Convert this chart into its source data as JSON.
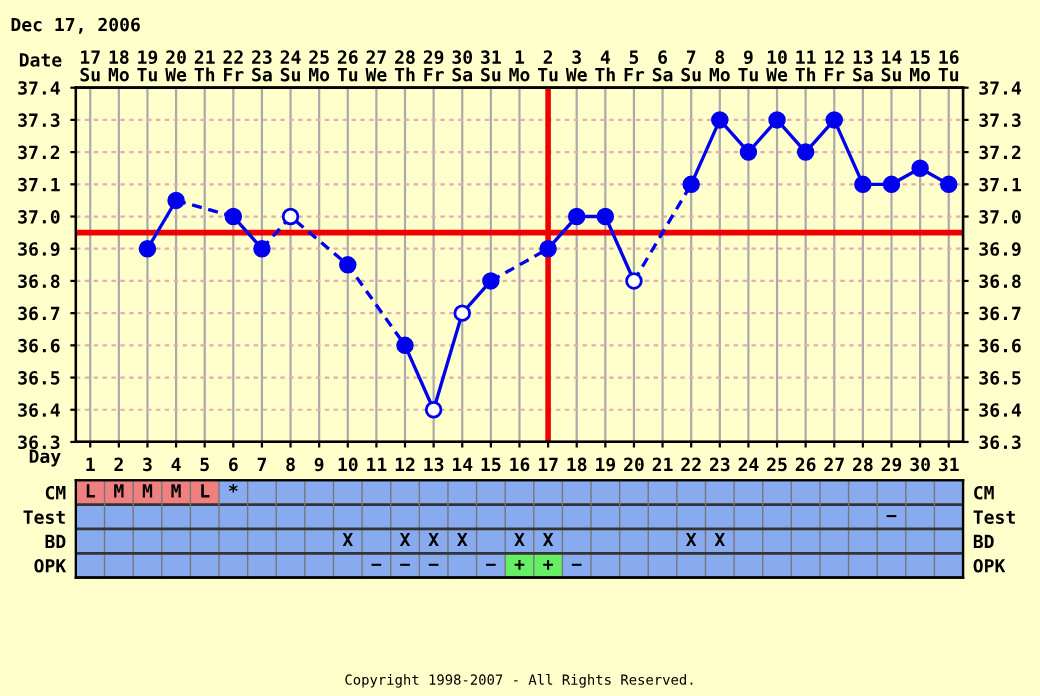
{
  "chart_data": [
    {
      "type": "line",
      "xlabel": "Day",
      "x2label": "Date",
      "annotations": [
        "Dec 17, 2006",
        "Copyright 1998-2007 - All Rights Reserved."
      ],
      "categories": [
        "1",
        "2",
        "3",
        "4",
        "5",
        "6",
        "7",
        "8",
        "9",
        "10",
        "11",
        "12",
        "13",
        "14",
        "15",
        "16",
        "17",
        "18",
        "19",
        "20",
        "21",
        "22",
        "23",
        "24",
        "25",
        "26",
        "27",
        "28",
        "29",
        "30",
        "31"
      ],
      "x2lim": [
        "2006-12-16T12:00",
        "2007-01-16T12:00"
      ],
      "x2ticks": [
        {
          "value": "2006-12-17",
          "label": "17\nSu"
        },
        {
          "value": "2006-12-18",
          "label": "18\nMo"
        },
        {
          "value": "2006-12-19",
          "label": "19\nTu"
        },
        {
          "value": "2006-12-20",
          "label": "20\nWe"
        },
        {
          "value": "2006-12-21",
          "label": "21\nTh"
        },
        {
          "value": "2006-12-22",
          "label": "22\nFr"
        },
        {
          "value": "2006-12-23",
          "label": "23\nSa"
        },
        {
          "value": "2006-12-24",
          "label": "24\nSu"
        },
        {
          "value": "2006-12-25",
          "label": "25\nMo"
        },
        {
          "value": "2006-12-26",
          "label": "26\nTu"
        },
        {
          "value": "2006-12-27",
          "label": "27\nWe"
        },
        {
          "value": "2006-12-28",
          "label": "28\nTh"
        },
        {
          "value": "2006-12-29",
          "label": "29\nFr"
        },
        {
          "value": "2006-12-30",
          "label": "30\nSa"
        },
        {
          "value": "2006-12-31",
          "label": "31\nSu"
        },
        {
          "value": "2007-01-01",
          "label": "1\nMo"
        },
        {
          "value": "2007-01-02",
          "label": "2\nTu"
        },
        {
          "value": "2007-01-03",
          "label": "3\nWe"
        },
        {
          "value": "2007-01-04",
          "label": "4\nTh"
        },
        {
          "value": "2007-01-05",
          "label": "5\nFr"
        },
        {
          "value": "2007-01-06",
          "label": "6\nSa"
        },
        {
          "value": "2007-01-07",
          "label": "7\nSu"
        },
        {
          "value": "2007-01-08",
          "label": "8\nMo"
        },
        {
          "value": "2007-01-09",
          "label": "9\nTu"
        },
        {
          "value": "2007-01-10",
          "label": "10\nWe"
        },
        {
          "value": "2007-01-11",
          "label": "11\nTh"
        },
        {
          "value": "2007-01-12",
          "label": "12\nFr"
        },
        {
          "value": "2007-01-13",
          "label": "13\nSa"
        },
        {
          "value": "2007-01-14",
          "label": "14\nSu"
        },
        {
          "value": "2007-01-15",
          "label": "15\nMo"
        },
        {
          "value": "2007-01-16",
          "label": "16\nTu"
        }
      ],
      "ylim": [
        36.3,
        37.4
      ],
      "yticks": [
        {
          "value": 36.3,
          "label": "36.3"
        },
        {
          "value": 36.4,
          "label": "36.4"
        },
        {
          "value": 36.5,
          "label": "36.5"
        },
        {
          "value": 36.6,
          "label": "36.6"
        },
        {
          "value": 36.7,
          "label": "36.7"
        },
        {
          "value": 36.8,
          "label": "36.8"
        },
        {
          "value": 36.9,
          "label": "36.9"
        },
        {
          "value": 37.0,
          "label": "37.0"
        },
        {
          "value": 37.1,
          "label": "37.1"
        },
        {
          "value": 37.2,
          "label": "37.2"
        },
        {
          "value": 37.3,
          "label": "37.3"
        },
        {
          "value": 37.4,
          "label": "37.4"
        }
      ],
      "y2lim": [
        36.3,
        37.4
      ],
      "y2ticks": [
        {
          "value": 36.3,
          "label": "36.3"
        },
        {
          "value": 36.4,
          "label": "36.4"
        },
        {
          "value": 36.5,
          "label": "36.5"
        },
        {
          "value": 36.6,
          "label": "36.6"
        },
        {
          "value": 36.7,
          "label": "36.7"
        },
        {
          "value": 36.8,
          "label": "36.8"
        },
        {
          "value": 36.9,
          "label": "36.9"
        },
        {
          "value": 37.0,
          "label": "37.0"
        },
        {
          "value": 37.1,
          "label": "37.1"
        },
        {
          "value": 37.2,
          "label": "37.2"
        },
        {
          "value": 37.3,
          "label": "37.3"
        },
        {
          "value": 37.4,
          "label": "37.4"
        }
      ],
      "grid": true,
      "legend": false,
      "ref_lines": [
        {
          "axis": "y",
          "value": 36.95,
          "color": "#ee0000"
        },
        {
          "axis": "x",
          "value": "17",
          "color": "#ee0000"
        }
      ],
      "series": [
        {
          "type": "line",
          "line_style": "dashed",
          "marker": "none",
          "color": "#0000ee",
          "x": [
            "4",
            "6"
          ],
          "values": [
            37.05,
            37.0
          ]
        },
        {
          "type": "line",
          "line_style": "dashed",
          "marker": "none",
          "color": "#0000ee",
          "x": [
            "7",
            "8",
            "10",
            "12"
          ],
          "values": [
            36.9,
            37.0,
            36.85,
            36.6
          ]
        },
        {
          "type": "line",
          "line_style": "dashed",
          "marker": "none",
          "color": "#0000ee",
          "x": [
            "15",
            "17"
          ],
          "values": [
            36.8,
            36.9
          ]
        },
        {
          "type": "line",
          "line_style": "dashed",
          "marker": "none",
          "color": "#0000ee",
          "x": [
            "20",
            "22"
          ],
          "values": [
            36.8,
            37.1
          ]
        },
        {
          "type": "line",
          "line_style": "solid",
          "marker": "none",
          "color": "#0000ee",
          "x": [
            "3",
            "4"
          ],
          "values": [
            36.9,
            37.05
          ]
        },
        {
          "type": "line",
          "line_style": "solid",
          "marker": "none",
          "color": "#0000ee",
          "x": [
            "6",
            "7"
          ],
          "values": [
            37.0,
            36.9
          ]
        },
        {
          "type": "line",
          "line_style": "solid",
          "marker": "none",
          "color": "#0000ee",
          "x": [
            "12",
            "13",
            "14",
            "15"
          ],
          "values": [
            36.6,
            36.4,
            36.7,
            36.8
          ]
        },
        {
          "type": "line",
          "line_style": "solid",
          "marker": "none",
          "color": "#0000ee",
          "x": [
            "17",
            "18",
            "19",
            "20"
          ],
          "values": [
            36.9,
            37.0,
            37.0,
            36.8
          ]
        },
        {
          "type": "line",
          "line_style": "solid",
          "marker": "none",
          "color": "#0000ee",
          "x": [
            "22",
            "23",
            "24",
            "25",
            "26",
            "27",
            "28",
            "29",
            "30",
            "31"
          ],
          "values": [
            37.1,
            37.3,
            37.2,
            37.3,
            37.2,
            37.3,
            37.1,
            37.1,
            37.15,
            37.1
          ]
        },
        {
          "type": "scatter",
          "marker": "circle",
          "color": "#0000ee",
          "x": [
            "3",
            "4",
            "6",
            "7",
            "10",
            "12",
            "15",
            "17",
            "18",
            "19",
            "22",
            "23",
            "24",
            "25",
            "26",
            "27",
            "28",
            "29",
            "30",
            "31"
          ],
          "values": [
            36.9,
            37.05,
            37.0,
            36.9,
            36.85,
            36.6,
            36.8,
            36.9,
            37.0,
            37.0,
            37.1,
            37.3,
            37.2,
            37.3,
            37.2,
            37.3,
            37.1,
            37.1,
            37.15,
            37.1
          ]
        },
        {
          "type": "scatter",
          "marker": "circle",
          "color": "#ffffff",
          "x": [
            "8",
            "13",
            "14",
            "20"
          ],
          "values": [
            37.0,
            36.4,
            36.7,
            36.8
          ]
        }
      ]
    },
    {
      "type": "other",
      "categories": [
        null,
        null,
        null,
        null,
        null,
        null,
        null,
        null,
        null,
        null,
        null,
        null,
        null,
        null,
        null,
        null,
        null,
        null,
        null,
        null,
        null,
        null,
        null,
        null,
        null,
        null,
        null,
        null,
        null,
        null,
        null
      ],
      "y_categories": [
        "CM",
        "Test",
        "BD",
        "OPK"
      ],
      "y2_categories": [
        "CM",
        "Test",
        "BD",
        "OPK"
      ],
      "cell_labels": [
        [
          "L",
          "M",
          "M",
          "M",
          "L",
          "*",
          null,
          null,
          null,
          null,
          null,
          null,
          null,
          null,
          null,
          null,
          null,
          null,
          null,
          null,
          null,
          null,
          null,
          null,
          null,
          null,
          null,
          null,
          null,
          null,
          null
        ],
        [
          null,
          null,
          null,
          null,
          null,
          null,
          null,
          null,
          null,
          null,
          null,
          null,
          null,
          null,
          null,
          null,
          null,
          null,
          null,
          null,
          null,
          null,
          null,
          null,
          null,
          null,
          null,
          null,
          "−",
          null,
          null
        ],
        [
          null,
          null,
          null,
          null,
          null,
          null,
          null,
          null,
          null,
          "X",
          null,
          "X",
          "X",
          "X",
          null,
          "X",
          "X",
          null,
          null,
          null,
          null,
          "X",
          "X",
          null,
          null,
          null,
          null,
          null,
          null,
          null,
          null
        ],
        [
          null,
          null,
          null,
          null,
          null,
          null,
          null,
          null,
          null,
          null,
          "−",
          "−",
          "−",
          null,
          "−",
          "+",
          "+",
          "−",
          null,
          null,
          null,
          null,
          null,
          null,
          null,
          null,
          null,
          null,
          null,
          null,
          null
        ]
      ],
      "colors": [
        [
          "#f08080",
          "#f08080",
          "#f08080",
          "#f08080",
          "#f08080",
          "#88aaee",
          "#88aaee",
          "#88aaee",
          "#88aaee",
          "#88aaee",
          "#88aaee",
          "#88aaee",
          "#88aaee",
          "#88aaee",
          "#88aaee",
          "#88aaee",
          "#88aaee",
          "#88aaee",
          "#88aaee",
          "#88aaee",
          "#88aaee",
          "#88aaee",
          "#88aaee",
          "#88aaee",
          "#88aaee",
          "#88aaee",
          "#88aaee",
          "#88aaee",
          "#88aaee",
          "#88aaee",
          "#88aaee"
        ],
        [
          "#88aaee",
          "#88aaee",
          "#88aaee",
          "#88aaee",
          "#88aaee",
          "#88aaee",
          "#88aaee",
          "#88aaee",
          "#88aaee",
          "#88aaee",
          "#88aaee",
          "#88aaee",
          "#88aaee",
          "#88aaee",
          "#88aaee",
          "#88aaee",
          "#88aaee",
          "#88aaee",
          "#88aaee",
          "#88aaee",
          "#88aaee",
          "#88aaee",
          "#88aaee",
          "#88aaee",
          "#88aaee",
          "#88aaee",
          "#88aaee",
          "#88aaee",
          "#88aaee",
          "#88aaee",
          "#88aaee"
        ],
        [
          "#88aaee",
          "#88aaee",
          "#88aaee",
          "#88aaee",
          "#88aaee",
          "#88aaee",
          "#88aaee",
          "#88aaee",
          "#88aaee",
          "#88aaee",
          "#88aaee",
          "#88aaee",
          "#88aaee",
          "#88aaee",
          "#88aaee",
          "#88aaee",
          "#88aaee",
          "#88aaee",
          "#88aaee",
          "#88aaee",
          "#88aaee",
          "#88aaee",
          "#88aaee",
          "#88aaee",
          "#88aaee",
          "#88aaee",
          "#88aaee",
          "#88aaee",
          "#88aaee",
          "#88aaee",
          "#88aaee"
        ],
        [
          "#88aaee",
          "#88aaee",
          "#88aaee",
          "#88aaee",
          "#88aaee",
          "#88aaee",
          "#88aaee",
          "#88aaee",
          "#88aaee",
          "#88aaee",
          "#88aaee",
          "#88aaee",
          "#88aaee",
          "#88aaee",
          "#88aaee",
          "#66ee66",
          "#66ee66",
          "#88aaee",
          "#88aaee",
          "#88aaee",
          "#88aaee",
          "#88aaee",
          "#88aaee",
          "#88aaee",
          "#88aaee",
          "#88aaee",
          "#88aaee",
          "#88aaee",
          "#88aaee",
          "#88aaee",
          "#88aaee"
        ]
      ]
    }
  ]
}
